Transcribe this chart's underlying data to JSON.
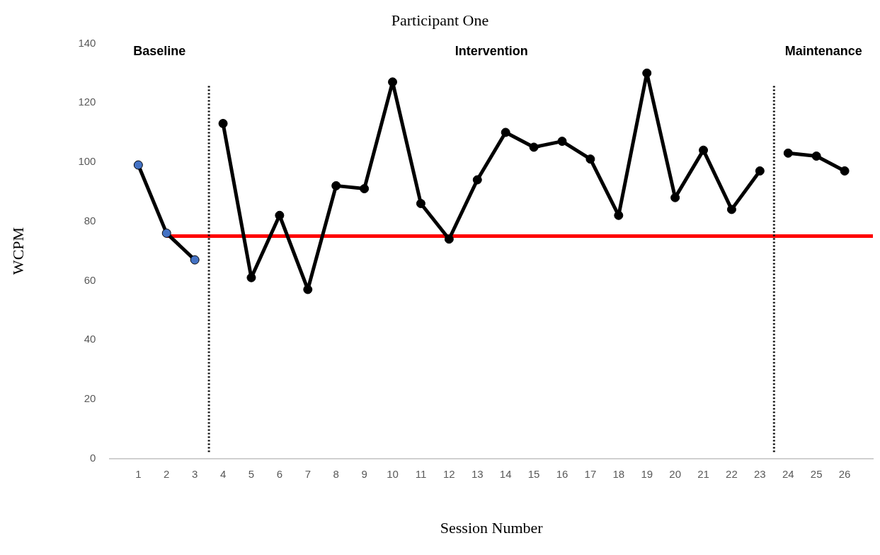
{
  "chart_data": {
    "type": "line",
    "title": "Participant One",
    "xlabel": "Session Number",
    "ylabel": "WCPM",
    "xlim": [
      0,
      27
    ],
    "xticks": [
      1,
      2,
      3,
      4,
      5,
      6,
      7,
      8,
      9,
      10,
      11,
      12,
      13,
      14,
      15,
      16,
      17,
      18,
      19,
      20,
      21,
      22,
      23,
      24,
      25,
      26
    ],
    "ylim": [
      0,
      140
    ],
    "yticks": [
      0,
      20,
      40,
      60,
      80,
      100,
      120,
      140
    ],
    "grid": false,
    "marker": "circle",
    "series": [
      {
        "color": "#000000",
        "colors": [
          "#4472c4",
          "#4472c4",
          "#4472c4"
        ],
        "x": [
          1,
          2,
          3
        ],
        "values": [
          99,
          76,
          67
        ]
      },
      {
        "color": "#000000",
        "x": [
          4,
          5,
          6,
          7,
          8,
          9,
          10,
          11,
          12,
          13,
          14,
          15,
          16,
          17,
          18,
          19,
          20,
          21,
          22,
          23
        ],
        "values": [
          113,
          61,
          82,
          57,
          92,
          91,
          127,
          86,
          74,
          94,
          110,
          105,
          107,
          101,
          82,
          130,
          88,
          104,
          84,
          97
        ]
      },
      {
        "color": "#000000",
        "x": [
          24,
          25,
          26
        ],
        "values": [
          103,
          102,
          97
        ]
      },
      {
        "type": "line",
        "color": "#ff0000",
        "marker": "none",
        "x": [
          2,
          27
        ],
        "values": [
          75,
          75
        ]
      }
    ],
    "ref_lines": [
      {
        "axis": "x",
        "value": 3.5,
        "line_style": "dotted",
        "color": "#000000"
      },
      {
        "axis": "x",
        "value": 23.5,
        "line_style": "dotted",
        "color": "#000000"
      }
    ],
    "annotations": [
      "Baseline",
      "Intervention",
      "Maintenance"
    ]
  }
}
